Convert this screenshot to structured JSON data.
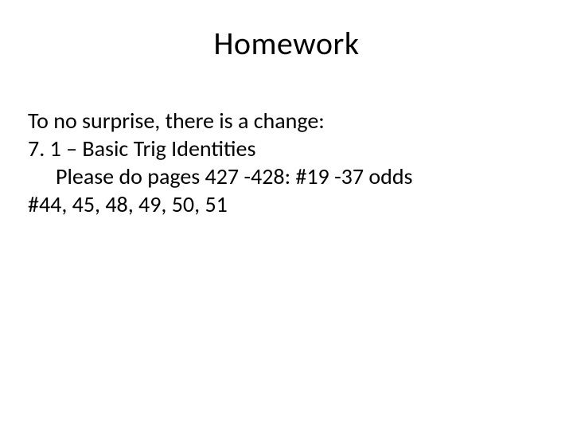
{
  "slide": {
    "title": "Homework",
    "lines": [
      "To no surprise, there is a change:",
      "7. 1 – Basic Trig Identities",
      "Please do pages 427 -428: #19 -37 odds",
      "#44, 45, 48, 49, 50, 51"
    ],
    "title_fontsize": 40,
    "body_fontsize": 28,
    "background_color": "#ffffff",
    "text_color": "#000000",
    "font_family": "Calibri"
  }
}
